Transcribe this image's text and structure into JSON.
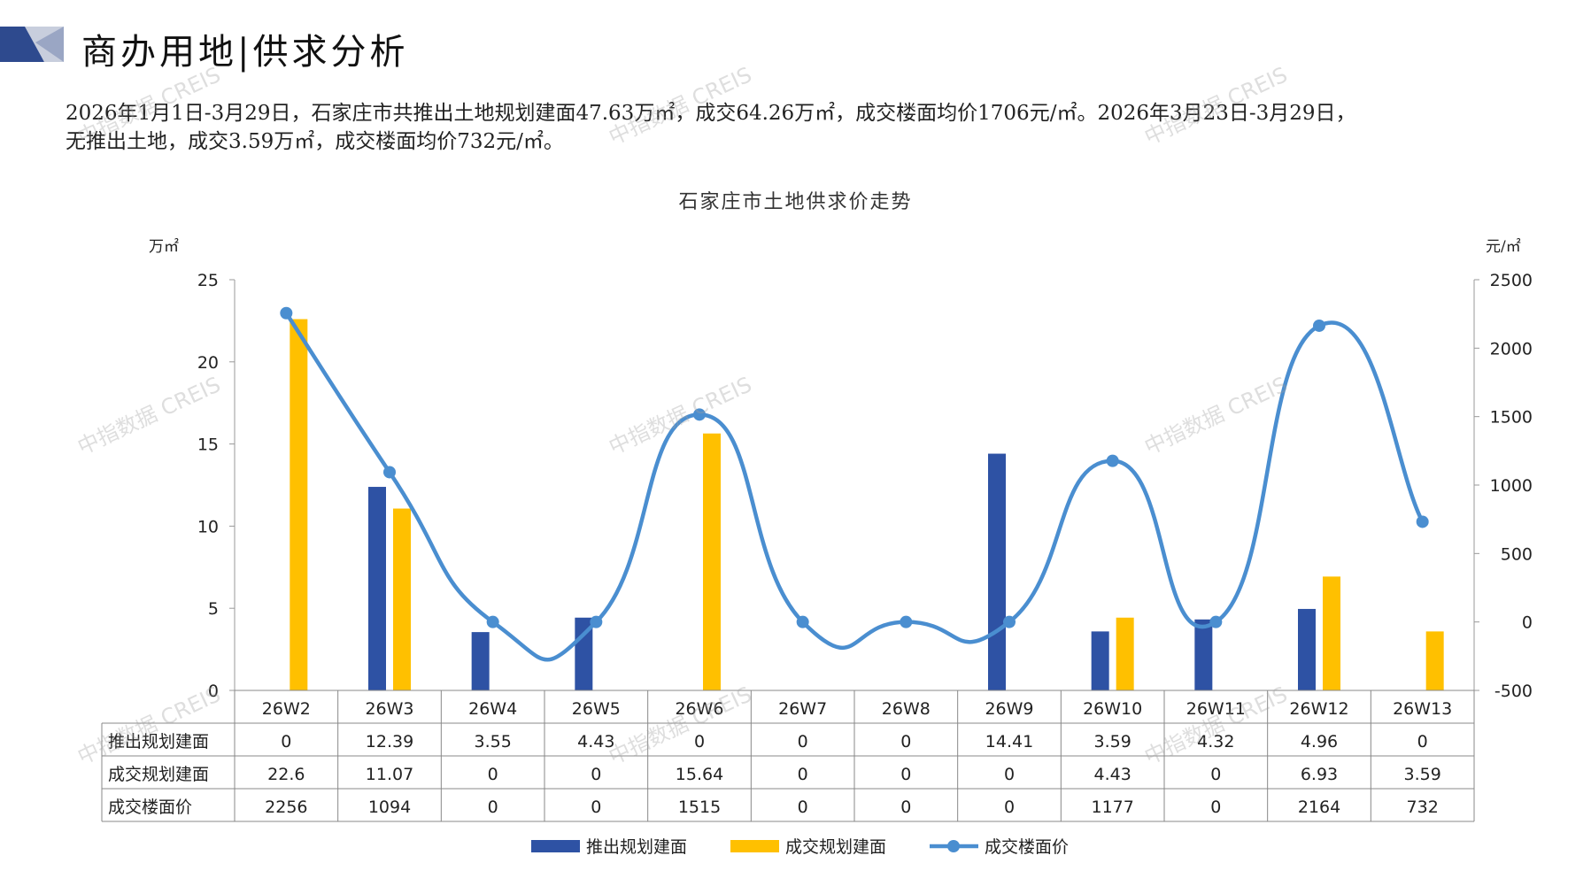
{
  "header": {
    "title": "商办用地|供求分析"
  },
  "summary": {
    "line1": "2026年1月1日-3月29日，石家庄市共推出土地规划建面47.63万㎡，成交64.26万㎡，成交楼面均价1706元/㎡。2026年3月23日-3月29日，",
    "line2": "无推出土地，成交3.59万㎡，成交楼面均价732元/㎡。"
  },
  "watermark": "中指数据 CREIS",
  "colors": {
    "push": "#2E52A4",
    "deal": "#FFC000",
    "price": "#4A8ED0",
    "logo_dark": "#2E4A8E",
    "logo_light": "#C8CEDD"
  },
  "chart_data": {
    "type": "bar+line",
    "title": "石家庄市土地供求价走势",
    "y_left_unit": "万㎡",
    "y_right_unit": "元/㎡",
    "y_left_range": [
      0,
      25
    ],
    "y_left_ticks": [
      0,
      5,
      10,
      15,
      20,
      25
    ],
    "y_right_range": [
      -500,
      2500
    ],
    "y_right_ticks": [
      -500,
      0,
      500,
      1000,
      1500,
      2000,
      2500
    ],
    "categories": [
      "26W2",
      "26W3",
      "26W4",
      "26W5",
      "26W6",
      "26W7",
      "26W8",
      "26W9",
      "26W10",
      "26W11",
      "26W12",
      "26W13"
    ],
    "series": [
      {
        "name": "推出规划建面",
        "kind": "bar",
        "axis": "left",
        "color": "#2E52A4",
        "values": [
          0,
          12.39,
          3.55,
          4.43,
          0,
          0,
          0,
          14.41,
          3.59,
          4.32,
          4.96,
          0
        ],
        "labels": [
          "0",
          "12.39",
          "3.55",
          "4.43",
          "0",
          "0",
          "0",
          "14.41",
          "3.59",
          "4.32",
          "4.96",
          "0"
        ]
      },
      {
        "name": "成交规划建面",
        "kind": "bar",
        "axis": "left",
        "color": "#FFC000",
        "values": [
          22.6,
          11.07,
          0,
          0,
          15.64,
          0,
          0,
          0,
          4.43,
          0,
          6.93,
          3.59
        ],
        "labels": [
          "22.6",
          "11.07",
          "0",
          "0",
          "15.64",
          "0",
          "0",
          "0",
          "4.43",
          "0",
          "6.93",
          "3.59"
        ]
      },
      {
        "name": "成交楼面价",
        "kind": "line",
        "axis": "right",
        "color": "#4A8ED0",
        "values": [
          2256,
          1094,
          0,
          0,
          1515,
          0,
          0,
          0,
          1177,
          0,
          2164,
          732
        ],
        "labels": [
          "2256",
          "1094",
          "0",
          "0",
          "1515",
          "0",
          "0",
          "0",
          "1177",
          "0",
          "2164",
          "732"
        ]
      }
    ],
    "legend_position": "bottom",
    "grid": false
  }
}
